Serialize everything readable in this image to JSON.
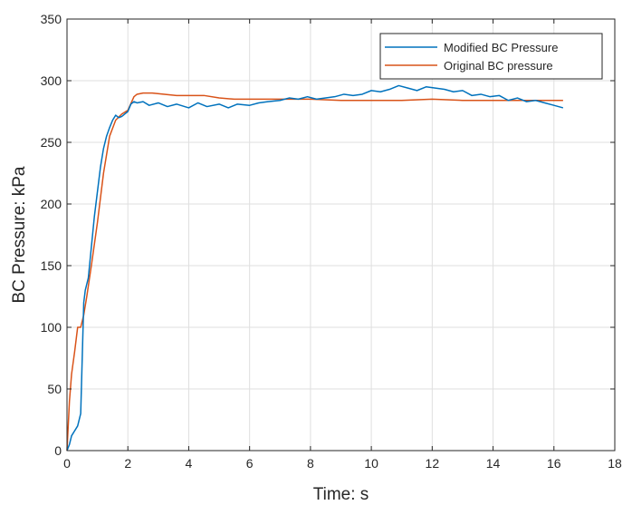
{
  "chart_data": {
    "type": "line",
    "title": "",
    "xlabel": "Time: s",
    "ylabel": "BC Pressure: kPa",
    "xlim": [
      0,
      18
    ],
    "ylim": [
      0,
      350
    ],
    "xticks": [
      0,
      2,
      4,
      6,
      8,
      10,
      12,
      14,
      16,
      18
    ],
    "yticks": [
      0,
      50,
      100,
      150,
      200,
      250,
      300,
      350
    ],
    "grid": true,
    "legend_position": "top-right",
    "series": [
      {
        "name": "Modified BC Pressure",
        "color": "#0072BD",
        "x": [
          0,
          0.08,
          0.15,
          0.25,
          0.35,
          0.45,
          0.5,
          0.55,
          0.6,
          0.7,
          0.8,
          0.9,
          1.0,
          1.1,
          1.2,
          1.3,
          1.4,
          1.5,
          1.6,
          1.7,
          1.8,
          1.9,
          2.0,
          2.1,
          2.2,
          2.3,
          2.5,
          2.7,
          3.0,
          3.3,
          3.6,
          4.0,
          4.3,
          4.6,
          5.0,
          5.3,
          5.6,
          6.0,
          6.3,
          6.6,
          7.0,
          7.3,
          7.6,
          7.9,
          8.2,
          8.5,
          8.8,
          9.1,
          9.4,
          9.7,
          10.0,
          10.3,
          10.6,
          10.9,
          11.2,
          11.5,
          11.8,
          12.1,
          12.4,
          12.7,
          13.0,
          13.3,
          13.6,
          13.9,
          14.2,
          14.5,
          14.8,
          15.1,
          15.4,
          15.7,
          16.0,
          16.3
        ],
        "y": [
          0,
          5,
          12,
          16,
          20,
          30,
          75,
          120,
          130,
          140,
          165,
          190,
          210,
          230,
          245,
          255,
          262,
          268,
          272,
          270,
          271,
          273,
          275,
          281,
          283,
          282,
          283,
          280,
          282,
          279,
          281,
          278,
          282,
          279,
          281,
          278,
          281,
          280,
          282,
          283,
          284,
          286,
          285,
          287,
          285,
          286,
          287,
          289,
          288,
          289,
          292,
          291,
          293,
          296,
          294,
          292,
          295,
          294,
          293,
          291,
          292,
          288,
          289,
          287,
          288,
          284,
          286,
          283,
          284,
          282,
          280,
          278
        ]
      },
      {
        "name": "Original BC pressure",
        "color": "#D95319",
        "x": [
          0,
          0.08,
          0.15,
          0.25,
          0.35,
          0.45,
          0.55,
          0.65,
          0.8,
          1.0,
          1.2,
          1.4,
          1.6,
          1.8,
          2.0,
          2.2,
          2.3,
          2.5,
          2.8,
          3.2,
          3.6,
          4.0,
          4.5,
          5.0,
          5.5,
          6.0,
          7.0,
          8.0,
          9.0,
          10.0,
          11.0,
          12.0,
          13.0,
          14.0,
          15.0,
          16.0,
          16.3
        ],
        "y": [
          0,
          40,
          62,
          80,
          100,
          100,
          110,
          125,
          150,
          185,
          225,
          255,
          268,
          273,
          276,
          287,
          289,
          290,
          290,
          289,
          288,
          288,
          288,
          286,
          285,
          285,
          285,
          285,
          284,
          284,
          284,
          285,
          284,
          284,
          284,
          284,
          284
        ]
      }
    ]
  }
}
